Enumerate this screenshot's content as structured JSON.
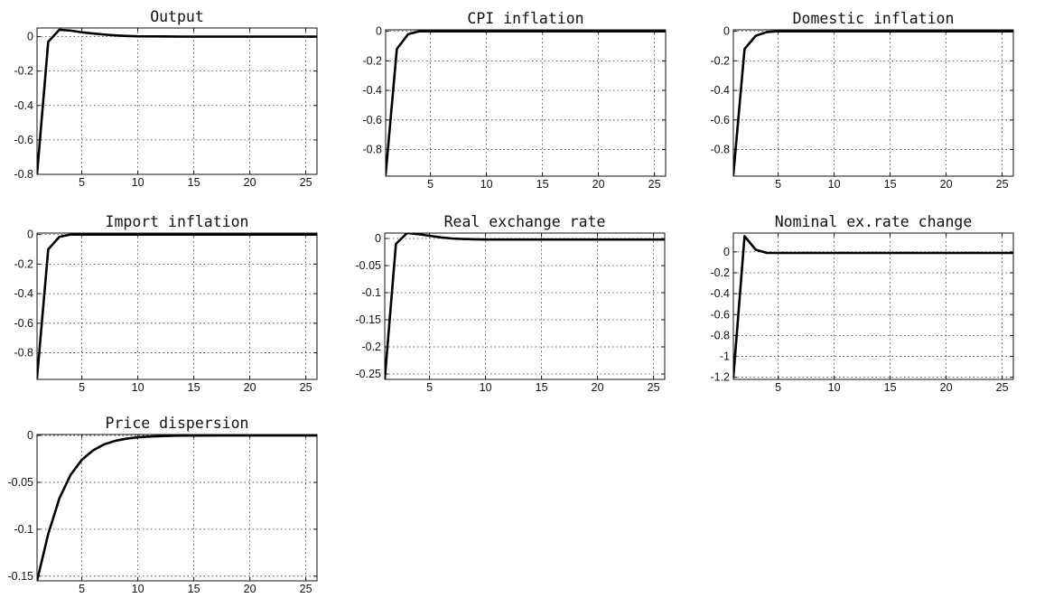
{
  "figure": {
    "line_color": "#000000",
    "grid": true
  },
  "chart_data": [
    {
      "type": "line",
      "title": "Output",
      "xlim": [
        1,
        26
      ],
      "ylim": [
        -0.8,
        0.05
      ],
      "xticks": [
        5,
        10,
        15,
        20,
        25
      ],
      "yticks": [
        0,
        -0.2,
        -0.4,
        -0.6,
        -0.8
      ],
      "series": [
        {
          "x": [
            1,
            2,
            3,
            4,
            5,
            6,
            7,
            8,
            9,
            10,
            12,
            14,
            16,
            18,
            20,
            22,
            24,
            26
          ],
          "y": [
            -0.8,
            -0.03,
            0.04,
            0.035,
            0.025,
            0.018,
            0.012,
            0.007,
            0.004,
            0.002,
            0.001,
            0,
            0,
            0,
            0,
            0,
            0,
            0
          ]
        }
      ]
    },
    {
      "type": "line",
      "title": "CPI inflation",
      "xlim": [
        1,
        26
      ],
      "ylim": [
        -0.98,
        0.01
      ],
      "xticks": [
        5,
        10,
        15,
        20,
        25
      ],
      "yticks": [
        0,
        -0.2,
        -0.4,
        -0.6,
        -0.8
      ],
      "series": [
        {
          "x": [
            1,
            2,
            3,
            4,
            5,
            6,
            8,
            10,
            15,
            20,
            26
          ],
          "y": [
            -0.97,
            -0.12,
            -0.02,
            0,
            0,
            0,
            0,
            0,
            0,
            0,
            0
          ]
        }
      ]
    },
    {
      "type": "line",
      "title": "Domestic inflation",
      "xlim": [
        1,
        26
      ],
      "ylim": [
        -0.98,
        0.01
      ],
      "xticks": [
        5,
        10,
        15,
        20,
        25
      ],
      "yticks": [
        0,
        -0.2,
        -0.4,
        -0.6,
        -0.8
      ],
      "series": [
        {
          "x": [
            1,
            2,
            3,
            4,
            5,
            6,
            8,
            10,
            15,
            20,
            26
          ],
          "y": [
            -0.97,
            -0.12,
            -0.03,
            -0.005,
            0,
            0,
            0,
            0,
            0,
            0,
            0
          ]
        }
      ]
    },
    {
      "type": "line",
      "title": "Import inflation",
      "xlim": [
        1,
        26
      ],
      "ylim": [
        -0.98,
        0.01
      ],
      "xticks": [
        5,
        10,
        15,
        20,
        25
      ],
      "yticks": [
        0,
        -0.2,
        -0.4,
        -0.6,
        -0.8
      ],
      "series": [
        {
          "x": [
            1,
            2,
            3,
            4,
            5,
            6,
            8,
            10,
            15,
            20,
            26
          ],
          "y": [
            -0.97,
            -0.1,
            -0.015,
            0,
            0,
            0,
            0,
            0,
            0,
            0,
            0
          ]
        }
      ]
    },
    {
      "type": "line",
      "title": "Real exchange rate",
      "xlim": [
        1,
        26
      ],
      "ylim": [
        -0.26,
        0.01
      ],
      "xticks": [
        5,
        10,
        15,
        20,
        25
      ],
      "yticks": [
        0,
        -0.05,
        -0.1,
        -0.15,
        -0.2,
        -0.25
      ],
      "series": [
        {
          "x": [
            1,
            2,
            3,
            4,
            5,
            6,
            7,
            8,
            9,
            10,
            12,
            14,
            16,
            18,
            20,
            22,
            24,
            26
          ],
          "y": [
            -0.26,
            -0.01,
            0.01,
            0.008,
            0.005,
            0.002,
            0,
            -0.001,
            -0.0015,
            -0.002,
            -0.002,
            -0.002,
            -0.002,
            -0.002,
            -0.002,
            -0.002,
            -0.002,
            -0.002
          ]
        }
      ]
    },
    {
      "type": "line",
      "title": "Nominal ex.rate change",
      "xlim": [
        1,
        26
      ],
      "ylim": [
        -1.22,
        0.18
      ],
      "xticks": [
        5,
        10,
        15,
        20,
        25
      ],
      "yticks": [
        0,
        -0.2,
        -0.4,
        -0.6,
        -0.8,
        -1,
        -1.2
      ],
      "series": [
        {
          "x": [
            1,
            2,
            3,
            4,
            5,
            6,
            8,
            10,
            15,
            20,
            26
          ],
          "y": [
            -1.2,
            0.15,
            0.02,
            -0.01,
            -0.01,
            -0.01,
            -0.01,
            -0.01,
            -0.01,
            -0.01,
            -0.01
          ]
        }
      ]
    },
    {
      "type": "line",
      "title": "Price dispersion",
      "xlim": [
        1,
        26
      ],
      "ylim": [
        -0.155,
        0.001
      ],
      "xticks": [
        5,
        10,
        15,
        20,
        25
      ],
      "yticks": [
        0,
        -0.05,
        -0.1,
        -0.15
      ],
      "series": [
        {
          "x": [
            1,
            2,
            3,
            4,
            5,
            6,
            7,
            8,
            9,
            10,
            11,
            12,
            13,
            14,
            15,
            17,
            20,
            23,
            26
          ],
          "y": [
            -0.155,
            -0.105,
            -0.067,
            -0.042,
            -0.026,
            -0.016,
            -0.0095,
            -0.0057,
            -0.0034,
            -0.002,
            -0.0012,
            -0.0007,
            -0.0004,
            -0.0002,
            -0.0001,
            0,
            0,
            0,
            0
          ]
        }
      ]
    }
  ]
}
